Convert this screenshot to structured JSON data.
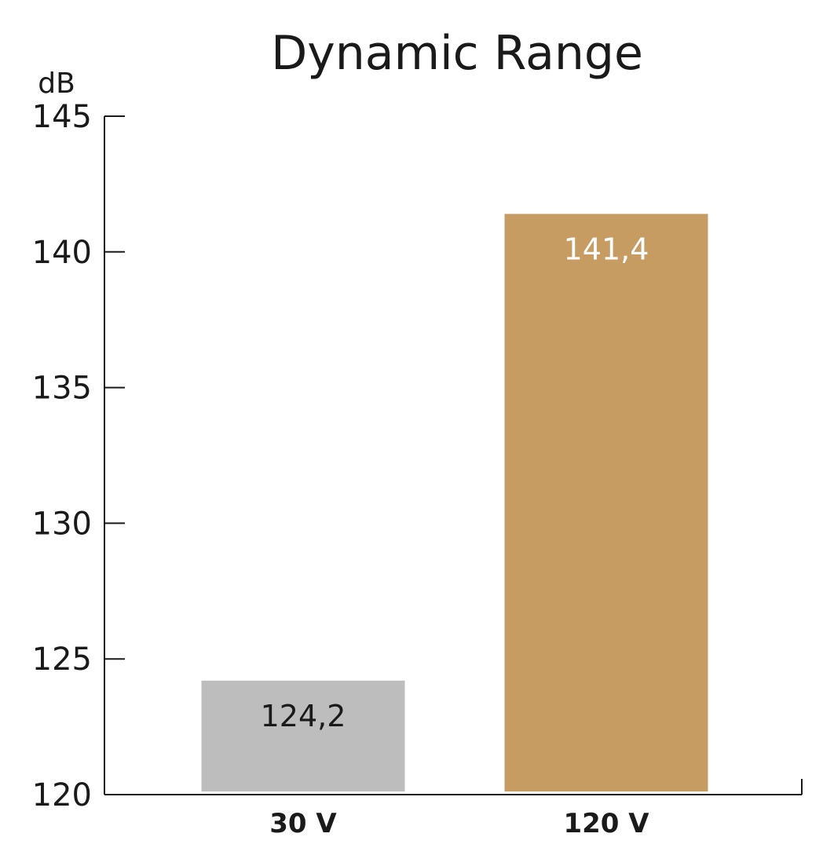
{
  "chart_data": {
    "type": "bar",
    "title": "Dynamic Range",
    "ylabel": "dB",
    "xlabel": "",
    "categories": [
      "30 V",
      "120 V"
    ],
    "values": [
      124.2,
      141.4
    ],
    "value_labels": [
      "124,2",
      "141,4"
    ],
    "ylim": [
      120,
      145
    ],
    "yticks": [
      120,
      125,
      130,
      135,
      140,
      145
    ],
    "grid": false,
    "bar_colors": [
      "#bdbdbe",
      "#c69c62"
    ],
    "value_label_colors": [
      "#1a1a1a",
      "#ffffff"
    ]
  }
}
